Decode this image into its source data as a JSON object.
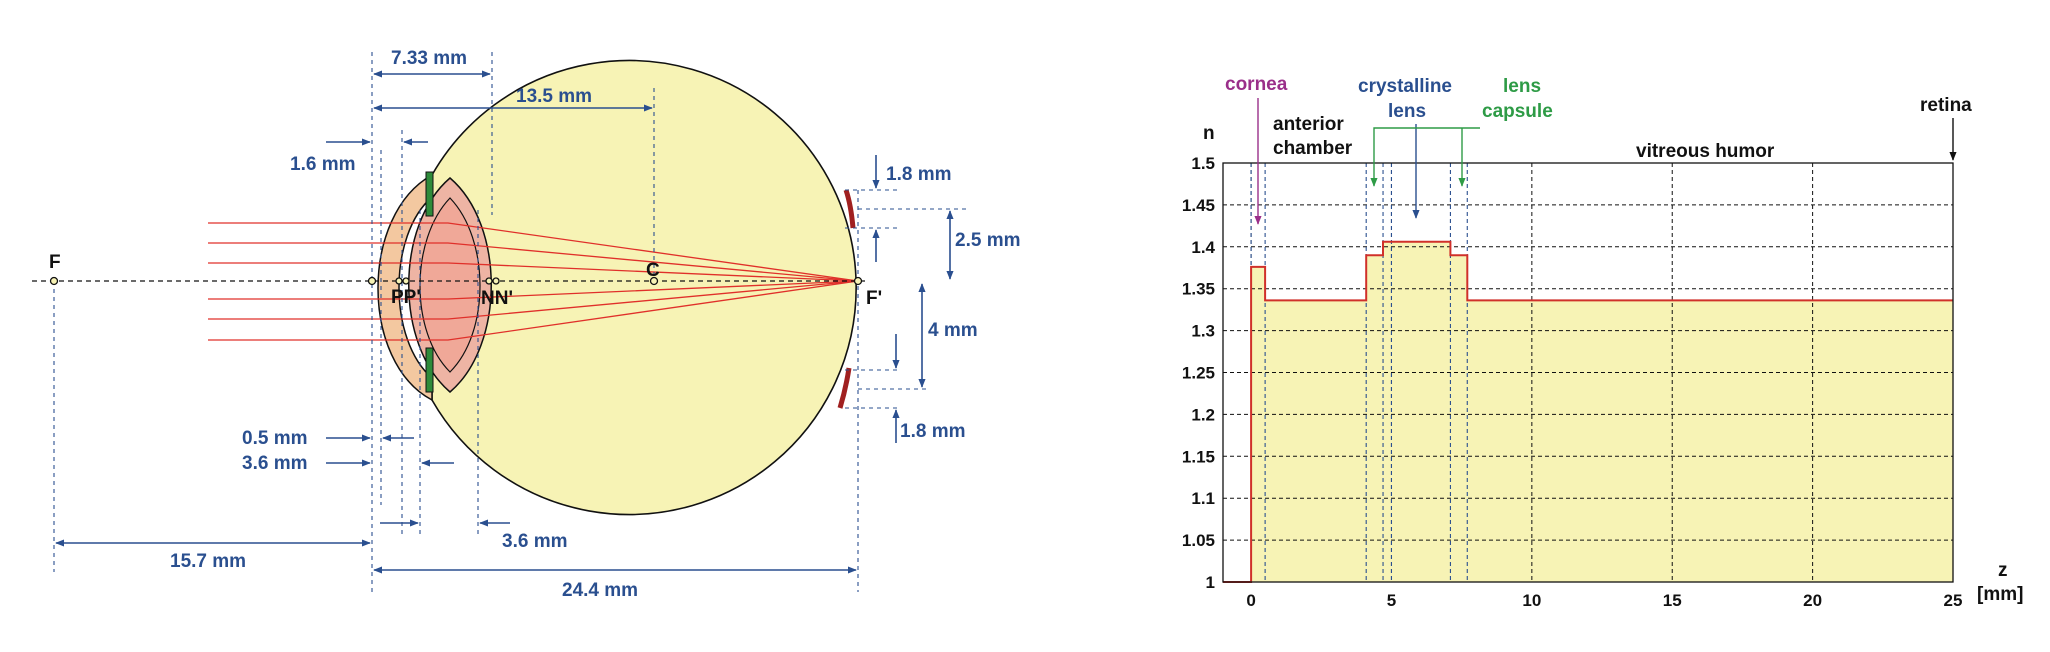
{
  "eye": {
    "focal_points": {
      "front": "F",
      "back": "F'"
    },
    "cardinal_points": {
      "principal": "PP'",
      "nodal": "NN'",
      "center": "C"
    },
    "dimensions": {
      "d_733": "7.33 mm",
      "d_135": "13.5 mm",
      "d_16": "1.6 mm",
      "d_05": "0.5 mm",
      "d_36a": "3.6 mm",
      "d_157": "15.7 mm",
      "d_36b": "3.6 mm",
      "d_244": "24.4 mm",
      "d_18a": "1.8 mm",
      "d_25": "2.5 mm",
      "d_4": "4 mm",
      "d_18b": "1.8 mm"
    },
    "colors": {
      "globe": "#f7f3b5",
      "cornea": "#f3c8a0",
      "lens": "#eeb4a4",
      "iris": "#2e8b3a",
      "ray": "#e0302a",
      "dimension": "#2a4f8f",
      "fovea": "#a02020"
    }
  },
  "chart": {
    "y_axis_name": "n",
    "x_axis_name": "z",
    "x_axis_unit": "[mm]",
    "labels": {
      "cornea": "cornea",
      "anterior_1": "anterior",
      "anterior_2": "chamber",
      "crystalline_1": "crystalline",
      "crystalline_2": "lens",
      "capsule_1": "lens",
      "capsule_2": "capsule",
      "vitreous": "vitreous humor",
      "retina": "retina"
    },
    "colors": {
      "cornea": "#9a2f8a",
      "crystalline": "#2a4f8f",
      "capsule": "#2e9b46",
      "line": "#d0302a",
      "fill": "#f7f3b5"
    }
  },
  "chart_data": {
    "type": "area",
    "title": "",
    "xlabel": "z [mm]",
    "ylabel": "n",
    "xlim": [
      -1,
      25
    ],
    "ylim": [
      1,
      1.5
    ],
    "x_ticks": [
      "0",
      "5",
      "10",
      "15",
      "20",
      "25"
    ],
    "y_ticks": [
      "1",
      "1.05",
      "1.1",
      "1.15",
      "1.2",
      "1.25",
      "1.3",
      "1.35",
      "1.4",
      "1.45",
      "1.5"
    ],
    "grid": true,
    "series": [
      {
        "x": [
          -1,
          0,
          0,
          0.5,
          0.5,
          4.1,
          4.1,
          4.7,
          4.7,
          7.1,
          7.1,
          7.7,
          7.7,
          25
        ],
        "values": [
          1,
          1,
          1.376,
          1.376,
          1.336,
          1.336,
          1.39,
          1.39,
          1.406,
          1.406,
          1.39,
          1.39,
          1.336,
          1.336
        ]
      }
    ],
    "region_boundaries": [
      0,
      0.5,
      4.1,
      4.7,
      5.0,
      7.1,
      7.7
    ]
  }
}
